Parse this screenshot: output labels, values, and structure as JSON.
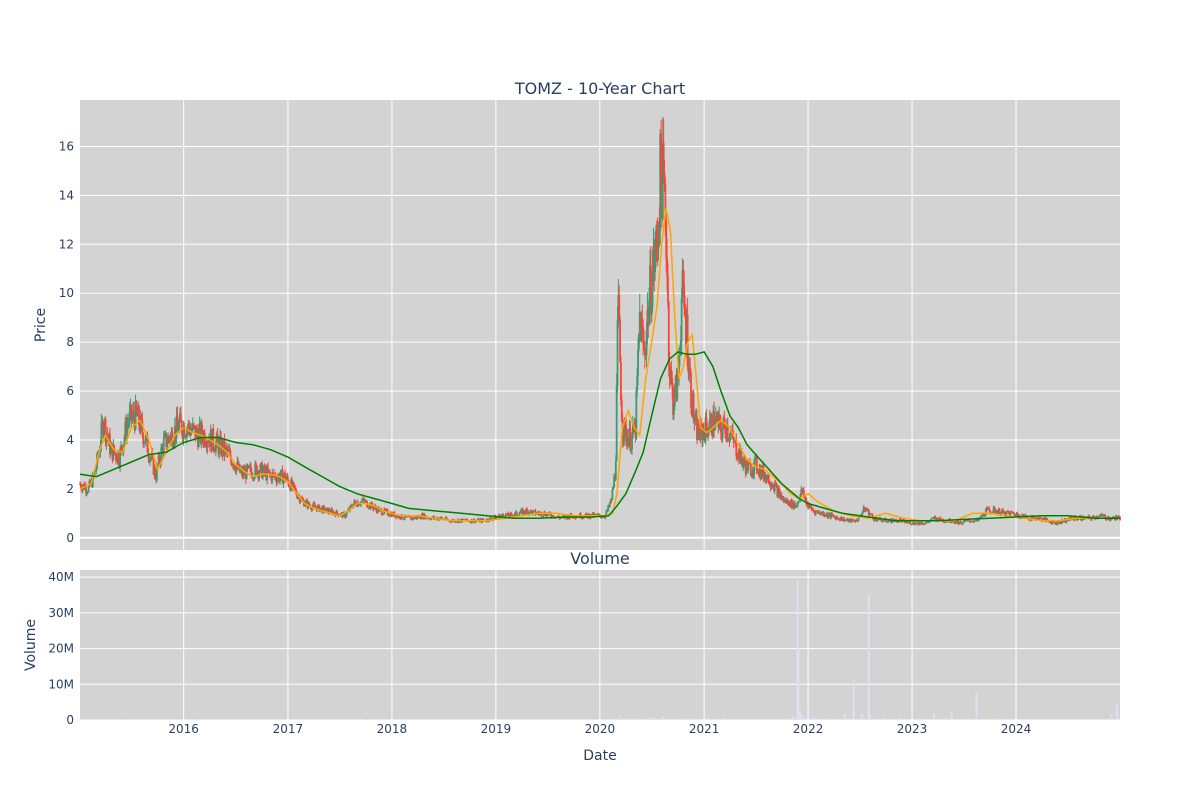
{
  "chart_data": [
    {
      "type": "candlestick",
      "title": "TOMZ - 10-Year Chart",
      "xlabel": "",
      "ylabel": "Price",
      "ylim": [
        -0.5,
        17.9
      ],
      "yticks": [
        0,
        2,
        4,
        6,
        8,
        10,
        12,
        14,
        16
      ],
      "xlim": [
        "2015-01-02",
        "2024-12-31"
      ],
      "grid": true,
      "colors": {
        "up": "#3d9970",
        "down": "#ff4136",
        "ma_short": "#ffa500",
        "ma_long": "#008000",
        "plot_bg": "#d3d3d3"
      },
      "series": [
        {
          "name": "",
          "kind": "close",
          "x": [
            "2015-01-02",
            "2015-02-01",
            "2015-02-20",
            "2015-03-05",
            "2015-03-25",
            "2015-04-20",
            "2015-05-20",
            "2015-06-20",
            "2015-07-20",
            "2015-08-20",
            "2015-09-10",
            "2015-09-25",
            "2015-10-20",
            "2015-11-20",
            "2015-12-15",
            "2016-01-20",
            "2016-02-20",
            "2016-03-20",
            "2016-04-20",
            "2016-05-20",
            "2016-06-20",
            "2016-07-20",
            "2016-08-20",
            "2016-09-20",
            "2016-10-20",
            "2016-11-20",
            "2016-12-20",
            "2017-01-20",
            "2017-02-20",
            "2017-03-20",
            "2017-04-20",
            "2017-05-20",
            "2017-06-20",
            "2017-07-20",
            "2017-08-20",
            "2017-09-20",
            "2017-10-20",
            "2017-11-20",
            "2017-12-20",
            "2018-01-20",
            "2018-02-20",
            "2018-03-20",
            "2018-04-20",
            "2018-05-20",
            "2018-06-20",
            "2018-07-20",
            "2018-08-20",
            "2018-09-20",
            "2018-10-20",
            "2018-11-20",
            "2018-12-20",
            "2019-01-20",
            "2019-02-20",
            "2019-03-20",
            "2019-04-20",
            "2019-05-20",
            "2019-06-20",
            "2019-07-20",
            "2019-08-20",
            "2019-09-20",
            "2019-10-20",
            "2019-11-20",
            "2019-12-20",
            "2020-01-20",
            "2020-02-10",
            "2020-02-25",
            "2020-03-05",
            "2020-03-20",
            "2020-04-05",
            "2020-04-20",
            "2020-05-05",
            "2020-05-20",
            "2020-06-05",
            "2020-06-20",
            "2020-07-05",
            "2020-07-20",
            "2020-08-01",
            "2020-08-10",
            "2020-08-20",
            "2020-09-01",
            "2020-09-15",
            "2020-10-01",
            "2020-10-15",
            "2020-11-01",
            "2020-11-15",
            "2020-12-01",
            "2020-12-15",
            "2021-01-01",
            "2021-01-20",
            "2021-02-10",
            "2021-03-01",
            "2021-03-20",
            "2021-04-10",
            "2021-05-01",
            "2021-05-20",
            "2021-06-10",
            "2021-07-01",
            "2021-07-20",
            "2021-08-10",
            "2021-09-01",
            "2021-09-20",
            "2021-10-10",
            "2021-11-01",
            "2021-11-20",
            "2021-12-10",
            "2022-01-01",
            "2022-01-20",
            "2022-02-20",
            "2022-03-20",
            "2022-04-20",
            "2022-05-20",
            "2022-06-20",
            "2022-07-20",
            "2022-08-20",
            "2022-09-20",
            "2022-10-20",
            "2022-11-20",
            "2022-12-20",
            "2023-01-20",
            "2023-02-20",
            "2023-03-20",
            "2023-04-20",
            "2023-05-20",
            "2023-06-20",
            "2023-07-20",
            "2023-08-20",
            "2023-09-20",
            "2023-10-20",
            "2023-11-20",
            "2023-12-20",
            "2024-01-20",
            "2024-02-20",
            "2024-03-20",
            "2024-04-20",
            "2024-05-20",
            "2024-06-20",
            "2024-07-20",
            "2024-08-20",
            "2024-09-20",
            "2024-10-20",
            "2024-11-20",
            "2024-12-20"
          ],
          "y": [
            2.2,
            2.0,
            2.5,
            3.2,
            4.8,
            3.6,
            3.3,
            4.8,
            5.0,
            4.0,
            3.2,
            2.5,
            3.8,
            4.2,
            4.6,
            4.5,
            4.2,
            4.2,
            3.9,
            3.6,
            3.2,
            2.6,
            2.7,
            2.8,
            2.6,
            2.5,
            2.5,
            2.0,
            1.5,
            1.3,
            1.2,
            1.1,
            1.0,
            0.9,
            1.4,
            1.5,
            1.3,
            1.1,
            1.0,
            0.9,
            0.8,
            0.8,
            0.9,
            0.8,
            0.8,
            0.7,
            0.7,
            0.7,
            0.7,
            0.7,
            0.8,
            0.9,
            0.9,
            1.0,
            1.1,
            1.0,
            1.0,
            0.9,
            0.8,
            0.9,
            0.9,
            0.9,
            0.9,
            0.9,
            1.5,
            2.8,
            9.5,
            4.5,
            4.2,
            4.0,
            4.5,
            9.0,
            7.5,
            9.5,
            11.0,
            12.0,
            15.0,
            14.5,
            13.0,
            7.0,
            5.5,
            6.5,
            10.0,
            8.5,
            6.0,
            4.5,
            4.2,
            4.4,
            4.6,
            4.8,
            4.4,
            4.6,
            4.0,
            3.5,
            3.0,
            2.8,
            3.0,
            2.7,
            2.5,
            2.2,
            1.8,
            1.5,
            1.4,
            1.3,
            1.9,
            1.3,
            1.1,
            1.0,
            0.9,
            0.8,
            0.7,
            0.7,
            1.2,
            0.8,
            0.7,
            0.7,
            0.7,
            0.6,
            0.6,
            0.6,
            0.8,
            0.7,
            0.7,
            0.6,
            0.7,
            0.7,
            1.1,
            1.1,
            1.0,
            1.0,
            0.9,
            0.8,
            0.8,
            0.7,
            0.6,
            0.7,
            0.8,
            0.8,
            0.8,
            0.9,
            0.8,
            0.8
          ]
        },
        {
          "name": "",
          "kind": "moving-average-short",
          "x": [
            "2015-01-02",
            "2015-02-10",
            "2015-03-10",
            "2015-04-01",
            "2015-05-01",
            "2015-06-01",
            "2015-07-01",
            "2015-08-01",
            "2015-09-01",
            "2015-10-01",
            "2015-11-01",
            "2015-12-01",
            "2016-01-01",
            "2016-02-01",
            "2016-03-01",
            "2016-04-01",
            "2016-05-01",
            "2016-06-01",
            "2016-07-01",
            "2016-08-01",
            "2016-09-01",
            "2016-10-01",
            "2016-11-01",
            "2016-12-01",
            "2017-01-01",
            "2017-02-01",
            "2017-03-01",
            "2017-04-01",
            "2017-05-01",
            "2017-06-01",
            "2017-07-01",
            "2017-08-01",
            "2017-09-01",
            "2017-10-01",
            "2017-11-01",
            "2017-12-01",
            "2018-02-01",
            "2018-04-01",
            "2018-06-01",
            "2018-08-01",
            "2018-10-01",
            "2018-12-01",
            "2019-02-01",
            "2019-04-01",
            "2019-06-01",
            "2019-08-01",
            "2019-10-01",
            "2019-12-01",
            "2020-01-15",
            "2020-02-15",
            "2020-03-01",
            "2020-03-20",
            "2020-04-10",
            "2020-05-01",
            "2020-05-20",
            "2020-06-10",
            "2020-07-01",
            "2020-07-20",
            "2020-08-05",
            "2020-08-20",
            "2020-09-05",
            "2020-09-20",
            "2020-10-05",
            "2020-10-20",
            "2020-11-05",
            "2020-11-20",
            "2020-12-05",
            "2020-12-20",
            "2021-01-10",
            "2021-02-01",
            "2021-03-01",
            "2021-04-01",
            "2021-05-01",
            "2021-06-01",
            "2021-07-01",
            "2021-08-01",
            "2021-09-01",
            "2021-10-01",
            "2021-11-01",
            "2021-12-01",
            "2022-01-01",
            "2022-02-01",
            "2022-04-01",
            "2022-06-01",
            "2022-08-01",
            "2022-10-01",
            "2022-12-01",
            "2023-02-01",
            "2023-04-01",
            "2023-06-01",
            "2023-08-01",
            "2023-10-01",
            "2023-12-01",
            "2024-02-01",
            "2024-04-01",
            "2024-06-01",
            "2024-08-01",
            "2024-10-01",
            "2024-12-31"
          ],
          "y": [
            2.0,
            2.2,
            3.5,
            4.2,
            3.6,
            3.5,
            4.5,
            4.8,
            4.0,
            2.8,
            3.5,
            4.2,
            4.5,
            4.3,
            4.2,
            4.0,
            3.8,
            3.5,
            3.0,
            2.7,
            2.5,
            2.6,
            2.6,
            2.5,
            2.3,
            1.8,
            1.4,
            1.2,
            1.1,
            1.0,
            0.9,
            1.1,
            1.4,
            1.4,
            1.3,
            1.1,
            0.9,
            0.9,
            0.8,
            0.7,
            0.7,
            0.7,
            0.8,
            0.9,
            1.0,
            1.0,
            0.9,
            0.9,
            0.9,
            1.0,
            1.8,
            4.5,
            5.2,
            4.5,
            4.2,
            6.5,
            8.0,
            9.5,
            12.0,
            13.5,
            12.5,
            9.0,
            6.5,
            7.0,
            8.0,
            8.3,
            6.5,
            4.5,
            4.3,
            4.5,
            4.8,
            4.5,
            3.8,
            3.2,
            2.9,
            2.8,
            2.5,
            2.2,
            1.8,
            1.6,
            1.8,
            1.5,
            1.1,
            0.9,
            0.8,
            1.0,
            0.8,
            0.7,
            0.7,
            0.7,
            1.0,
            1.0,
            0.9,
            0.8,
            0.7,
            0.7,
            0.8,
            0.8,
            0.8
          ]
        },
        {
          "name": "",
          "kind": "moving-average-long",
          "x": [
            "2015-01-02",
            "2015-03-01",
            "2015-05-01",
            "2015-07-01",
            "2015-09-01",
            "2015-11-01",
            "2016-01-01",
            "2016-03-01",
            "2016-05-01",
            "2016-07-01",
            "2016-09-01",
            "2016-11-01",
            "2017-01-01",
            "2017-03-01",
            "2017-05-01",
            "2017-07-01",
            "2017-09-01",
            "2017-11-01",
            "2018-01-01",
            "2018-03-01",
            "2018-06-01",
            "2018-09-01",
            "2018-12-01",
            "2019-03-01",
            "2019-06-01",
            "2019-09-01",
            "2019-12-01",
            "2020-02-01",
            "2020-03-01",
            "2020-04-01",
            "2020-05-01",
            "2020-06-01",
            "2020-07-01",
            "2020-08-01",
            "2020-09-01",
            "2020-10-01",
            "2020-11-01",
            "2020-12-01",
            "2021-01-01",
            "2021-02-01",
            "2021-03-01",
            "2021-04-01",
            "2021-05-01",
            "2021-06-01",
            "2021-07-01",
            "2021-08-01",
            "2021-09-01",
            "2021-10-01",
            "2021-11-01",
            "2021-12-01",
            "2022-01-01",
            "2022-03-01",
            "2022-05-01",
            "2022-07-01",
            "2022-09-01",
            "2022-11-01",
            "2023-01-01",
            "2023-04-01",
            "2023-07-01",
            "2023-10-01",
            "2024-01-01",
            "2024-04-01",
            "2024-07-01",
            "2024-10-01",
            "2024-12-31"
          ],
          "y": [
            2.6,
            2.5,
            2.8,
            3.1,
            3.4,
            3.5,
            3.9,
            4.1,
            4.1,
            3.9,
            3.8,
            3.6,
            3.3,
            2.9,
            2.5,
            2.1,
            1.8,
            1.6,
            1.4,
            1.2,
            1.1,
            1.0,
            0.9,
            0.8,
            0.8,
            0.85,
            0.85,
            0.9,
            1.3,
            1.8,
            2.6,
            3.5,
            5.0,
            6.5,
            7.3,
            7.6,
            7.5,
            7.5,
            7.6,
            7.0,
            6.0,
            5.0,
            4.5,
            3.8,
            3.4,
            3.0,
            2.6,
            2.2,
            1.9,
            1.6,
            1.4,
            1.2,
            1.0,
            0.9,
            0.8,
            0.7,
            0.7,
            0.7,
            0.75,
            0.8,
            0.85,
            0.9,
            0.9,
            0.8,
            0.8
          ]
        }
      ]
    },
    {
      "type": "bar",
      "title": "Volume",
      "xlabel": "Date",
      "ylabel": "Volume",
      "ylim": [
        0,
        42000000
      ],
      "yticks": [
        0,
        10000000,
        20000000,
        30000000,
        40000000
      ],
      "ytick_labels": [
        "0",
        "10M",
        "20M",
        "30M",
        "40M"
      ],
      "xlim": [
        "2015-01-02",
        "2024-12-31"
      ],
      "xtick_labels": [
        "2016",
        "2017",
        "2018",
        "2019",
        "2020",
        "2021",
        "2022",
        "2023",
        "2024"
      ],
      "grid": true,
      "colors": {
        "bar": "#e0e0f4",
        "plot_bg": "#d3d3d3"
      },
      "series": [
        {
          "name": "",
          "x": [
            "2015-03-10",
            "2015-06-15",
            "2016-02-10",
            "2016-09-01",
            "2017-04-10",
            "2017-10-05",
            "2018-05-01",
            "2018-11-20",
            "2019-06-15",
            "2019-12-10",
            "2020-02-28",
            "2020-03-10",
            "2020-04-15",
            "2020-05-20",
            "2020-06-20",
            "2020-07-10",
            "2020-08-10",
            "2020-09-10",
            "2020-10-15",
            "2020-11-20",
            "2021-01-15",
            "2021-03-10",
            "2021-05-20",
            "2021-07-15",
            "2021-09-10",
            "2021-10-20",
            "2021-11-10",
            "2021-11-25",
            "2021-11-28",
            "2021-12-05",
            "2021-12-15",
            "2022-01-20",
            "2022-03-10",
            "2022-05-10",
            "2022-06-10",
            "2022-07-10",
            "2022-08-02",
            "2022-08-05",
            "2022-09-20",
            "2022-11-20",
            "2023-01-20",
            "2023-03-20",
            "2023-05-01",
            "2023-05-20",
            "2023-07-20",
            "2023-08-15",
            "2023-10-20",
            "2023-12-20",
            "2024-02-20",
            "2024-04-20",
            "2024-06-20",
            "2024-08-20",
            "2024-10-20",
            "2024-12-01",
            "2024-12-20"
          ],
          "values": [
            300000,
            200000,
            150000,
            100000,
            120000,
            150000,
            100000,
            80000,
            100000,
            120000,
            500000,
            1200000,
            800000,
            600000,
            700000,
            800000,
            900000,
            700000,
            500000,
            600000,
            700000,
            600000,
            500000,
            400000,
            500000,
            600000,
            1000000,
            39000000,
            19500000,
            2500000,
            1200000,
            1000000,
            800000,
            1500000,
            11000000,
            1500000,
            35000000,
            1300000,
            800000,
            600000,
            500000,
            2000000,
            800000,
            2200000,
            600000,
            7500000,
            500000,
            400000,
            400000,
            300000,
            400000,
            300000,
            300000,
            1500000,
            4200000
          ]
        }
      ]
    }
  ]
}
